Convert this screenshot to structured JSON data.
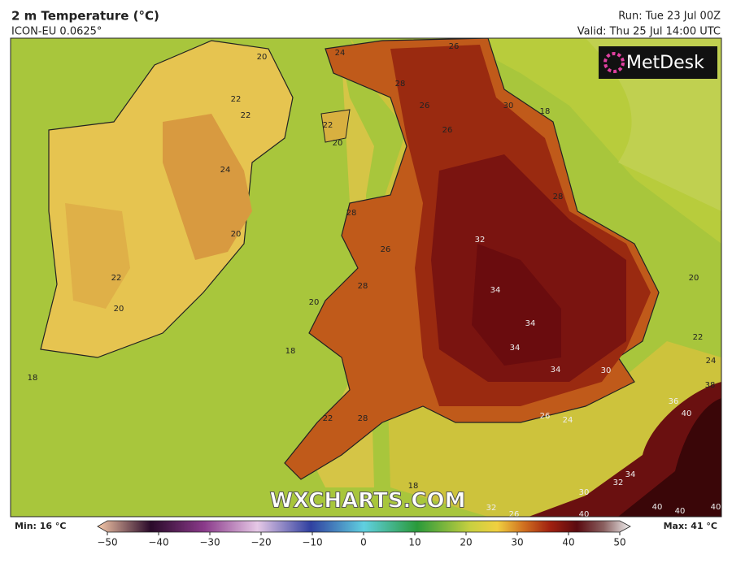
{
  "header": {
    "title": "2 m Temperature (°C)",
    "subtitle": "ICON-EU 0.0625°",
    "run": "Run: Tue 23 Jul 00Z",
    "valid": "Valid: Thu 25 Jul 14:00 UTC"
  },
  "logo": "MetDesk",
  "watermark": "WXCHARTS.COM",
  "map": {
    "contour_labels": [
      "20",
      "24",
      "26",
      "28",
      "26",
      "30",
      "18",
      "22",
      "22",
      "22",
      "20",
      "26",
      "24",
      "28",
      "28",
      "20",
      "32",
      "26",
      "22",
      "28",
      "20",
      "34",
      "20",
      "20",
      "34",
      "22",
      "34",
      "18",
      "24",
      "34",
      "30",
      "18",
      "38",
      "36",
      "40",
      "22",
      "28",
      "26",
      "24",
      "18",
      "34",
      "32",
      "30",
      "32",
      "26",
      "40",
      "40",
      "40",
      "40"
    ]
  },
  "legend": {
    "min": "Min: 16 °C",
    "max": "Max: 41 °C",
    "ticks": [
      {
        "value": -50,
        "label": "−50"
      },
      {
        "value": -40,
        "label": "−40"
      },
      {
        "value": -30,
        "label": "−30"
      },
      {
        "value": -20,
        "label": "−20"
      },
      {
        "value": -10,
        "label": "−10"
      },
      0,
      10,
      20,
      30,
      40,
      50
    ],
    "range": [
      -50,
      50
    ]
  }
}
